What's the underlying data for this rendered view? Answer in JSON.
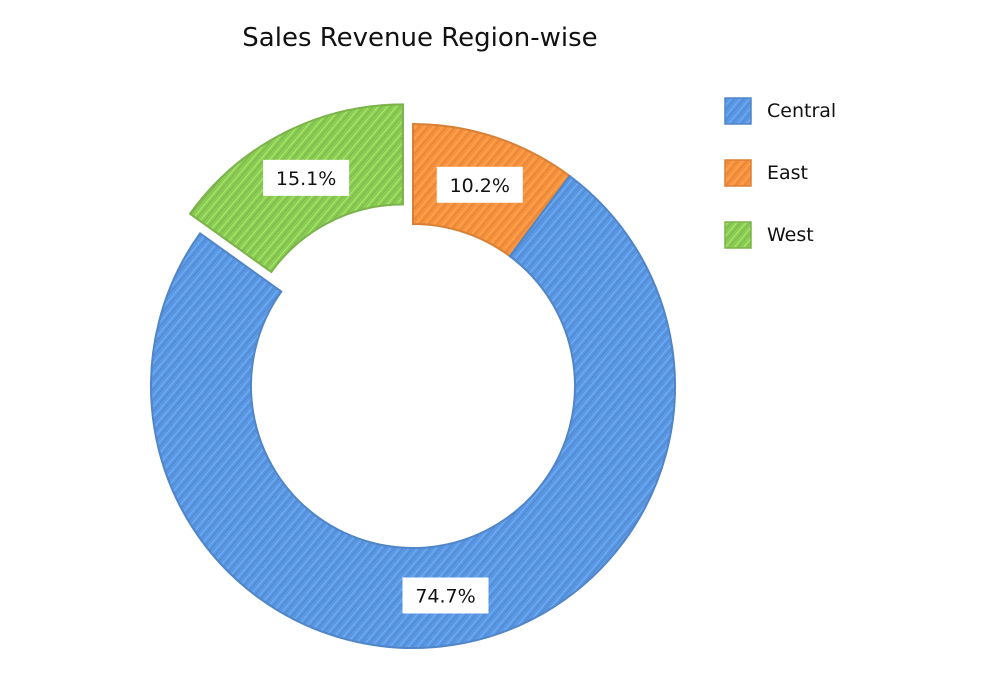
{
  "chart_data": {
    "type": "pie",
    "variant": "donut",
    "title": "Sales Revenue Region-wise",
    "slices": [
      {
        "name": "East",
        "value": 10.2,
        "label": "10.2%",
        "color": "#F7913F",
        "exploded": false
      },
      {
        "name": "Central",
        "value": 74.7,
        "label": "74.7%",
        "color": "#5B97E2",
        "exploded": false
      },
      {
        "name": "West",
        "value": 15.1,
        "label": "15.1%",
        "color": "#8CCB55",
        "exploded": true
      }
    ],
    "legend": {
      "placement": "top-right",
      "entries": [
        {
          "name": "Central",
          "color": "#5B97E2"
        },
        {
          "name": "East",
          "color": "#F7913F"
        },
        {
          "name": "West",
          "color": "#8CCB55"
        }
      ]
    },
    "style": "hand-drawn hatched"
  }
}
